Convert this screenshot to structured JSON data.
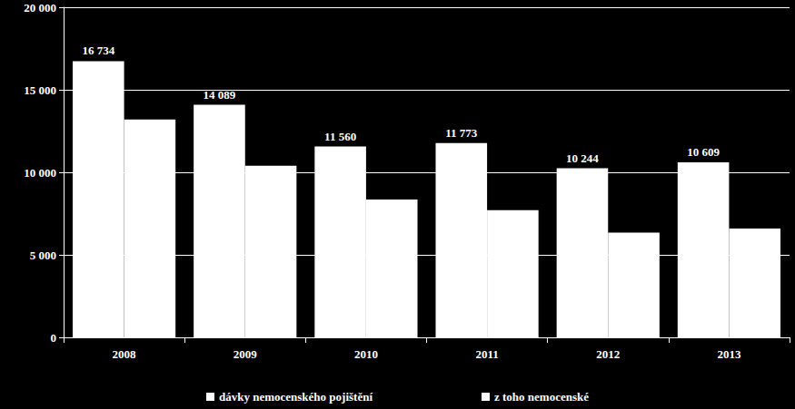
{
  "chart_data": {
    "type": "bar",
    "categories": [
      "2008",
      "2009",
      "2010",
      "2011",
      "2012",
      "2013"
    ],
    "series": [
      {
        "name": "dávky nemocenského pojištění",
        "color": "#ffffff",
        "values": [
          16734,
          14089,
          11560,
          11773,
          10244,
          10609
        ],
        "value_labels": [
          "16 734",
          "14 089",
          "11 560",
          "11 773",
          "10 244",
          "10 609"
        ],
        "data_labels": true
      },
      {
        "name": "z toho nemocenské",
        "color": "#ffffff",
        "values": [
          13200,
          10400,
          8350,
          7700,
          6350,
          6600
        ]
      }
    ],
    "ylim": [
      0,
      20000
    ],
    "yticks": [
      0,
      {
        "value": 5000,
        "label": "5 000"
      },
      {
        "value": 10000,
        "label": "10 000"
      },
      {
        "value": 15000,
        "label": "15 000"
      },
      {
        "value": 20000,
        "label": "20 000"
      }
    ],
    "grid": true,
    "legend": "bottom"
  }
}
